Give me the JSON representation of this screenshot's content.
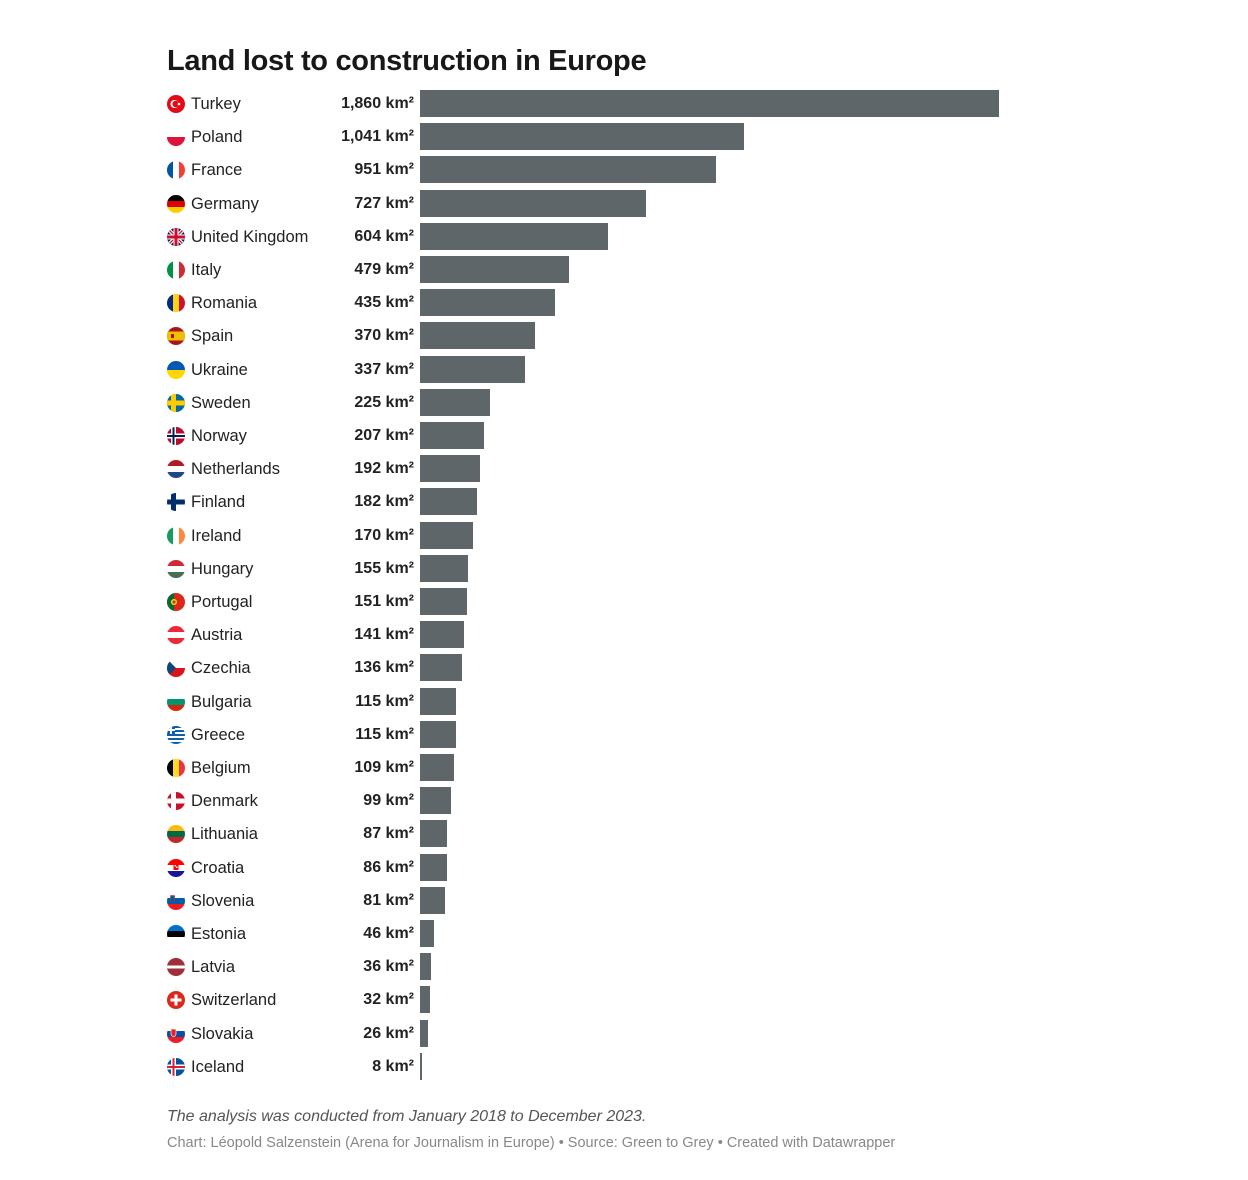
{
  "chart_data": {
    "type": "bar",
    "orientation": "horizontal",
    "title": "Land lost to construction in Europe",
    "unit_suffix": " km²",
    "bar_color": "#5f666a",
    "xlim": [
      0,
      1860
    ],
    "grid": false,
    "rows": [
      {
        "country": "Turkey",
        "value": 1860,
        "value_label": "1,860 km²",
        "flag": "turkey-flag-icon"
      },
      {
        "country": "Poland",
        "value": 1041,
        "value_label": "1,041 km²",
        "flag": "poland-flag-icon"
      },
      {
        "country": "France",
        "value": 951,
        "value_label": "951 km²",
        "flag": "france-flag-icon"
      },
      {
        "country": "Germany",
        "value": 727,
        "value_label": "727 km²",
        "flag": "germany-flag-icon"
      },
      {
        "country": "United Kingdom",
        "value": 604,
        "value_label": "604 km²",
        "flag": "united-kingdom-flag-icon"
      },
      {
        "country": "Italy",
        "value": 479,
        "value_label": "479 km²",
        "flag": "italy-flag-icon"
      },
      {
        "country": "Romania",
        "value": 435,
        "value_label": "435 km²",
        "flag": "romania-flag-icon"
      },
      {
        "country": "Spain",
        "value": 370,
        "value_label": "370 km²",
        "flag": "spain-flag-icon"
      },
      {
        "country": "Ukraine",
        "value": 337,
        "value_label": "337 km²",
        "flag": "ukraine-flag-icon"
      },
      {
        "country": "Sweden",
        "value": 225,
        "value_label": "225 km²",
        "flag": "sweden-flag-icon"
      },
      {
        "country": "Norway",
        "value": 207,
        "value_label": "207 km²",
        "flag": "norway-flag-icon"
      },
      {
        "country": "Netherlands",
        "value": 192,
        "value_label": "192 km²",
        "flag": "netherlands-flag-icon"
      },
      {
        "country": "Finland",
        "value": 182,
        "value_label": "182 km²",
        "flag": "finland-flag-icon"
      },
      {
        "country": "Ireland",
        "value": 170,
        "value_label": "170 km²",
        "flag": "ireland-flag-icon"
      },
      {
        "country": "Hungary",
        "value": 155,
        "value_label": "155 km²",
        "flag": "hungary-flag-icon"
      },
      {
        "country": "Portugal",
        "value": 151,
        "value_label": "151 km²",
        "flag": "portugal-flag-icon"
      },
      {
        "country": "Austria",
        "value": 141,
        "value_label": "141 km²",
        "flag": "austria-flag-icon"
      },
      {
        "country": "Czechia",
        "value": 136,
        "value_label": "136 km²",
        "flag": "czechia-flag-icon"
      },
      {
        "country": "Bulgaria",
        "value": 115,
        "value_label": "115 km²",
        "flag": "bulgaria-flag-icon"
      },
      {
        "country": "Greece",
        "value": 115,
        "value_label": "115 km²",
        "flag": "greece-flag-icon"
      },
      {
        "country": "Belgium",
        "value": 109,
        "value_label": "109 km²",
        "flag": "belgium-flag-icon"
      },
      {
        "country": "Denmark",
        "value": 99,
        "value_label": "99 km²",
        "flag": "denmark-flag-icon"
      },
      {
        "country": "Lithuania",
        "value": 87,
        "value_label": "87 km²",
        "flag": "lithuania-flag-icon"
      },
      {
        "country": "Croatia",
        "value": 86,
        "value_label": "86 km²",
        "flag": "croatia-flag-icon"
      },
      {
        "country": "Slovenia",
        "value": 81,
        "value_label": "81 km²",
        "flag": "slovenia-flag-icon"
      },
      {
        "country": "Estonia",
        "value": 46,
        "value_label": "46 km²",
        "flag": "estonia-flag-icon"
      },
      {
        "country": "Latvia",
        "value": 36,
        "value_label": "36 km²",
        "flag": "latvia-flag-icon"
      },
      {
        "country": "Switzerland",
        "value": 32,
        "value_label": "32 km²",
        "flag": "switzerland-flag-icon"
      },
      {
        "country": "Slovakia",
        "value": 26,
        "value_label": "26 km²",
        "flag": "slovakia-flag-icon"
      },
      {
        "country": "Iceland",
        "value": 8,
        "value_label": "8 km²",
        "flag": "iceland-flag-icon"
      }
    ],
    "notes": "The analysis was conducted from January 2018 to December 2023.",
    "byline": "Chart: Léopold Salzenstein (Arena for Journalism in Europe) • Source: Green to Grey • Created with Datawrapper"
  }
}
